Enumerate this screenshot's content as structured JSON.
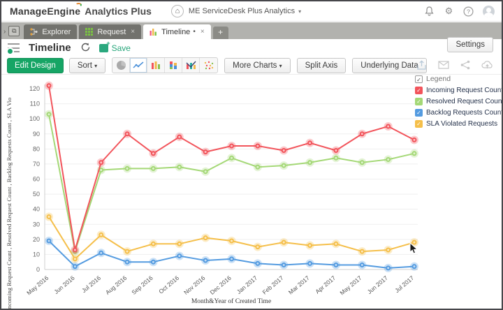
{
  "ui": {
    "caret": "▾",
    "close": "×",
    "add_tab": "+",
    "dirty": "•",
    "chevron": "›",
    "restore_glyph": "⧉",
    "home_glyph": "⌂",
    "help_glyph": "?",
    "gear_glyph": "⚙",
    "plus": "+"
  },
  "header": {
    "brand": "ManageEngine",
    "product": "Analytics Plus",
    "workspace": "ME ServiceDesk Plus Analytics"
  },
  "tabs": {
    "explorer": {
      "label": "Explorer"
    },
    "request": {
      "label": "Request"
    },
    "timeline": {
      "label": "Timeline"
    }
  },
  "toolbar": {
    "title": "Timeline",
    "save_label": "Save",
    "settings_label": "Settings"
  },
  "design_bar": {
    "edit_design": "Edit Design",
    "sort": "Sort",
    "more_charts": "More Charts",
    "split_axis": "Split Axis",
    "underlying_data": "Underlying Data"
  },
  "legend": {
    "title": "Legend",
    "items": [
      {
        "label": "Incoming Request Count",
        "color": "#f2545b"
      },
      {
        "label": "Resolved Request Count",
        "color": "#a4d876"
      },
      {
        "label": "Backlog Requests Count",
        "color": "#549be0"
      },
      {
        "label": "SLA Violated Requests",
        "color": "#f5bf4a"
      }
    ]
  },
  "chart_data": {
    "type": "line",
    "x": [
      "May 2016",
      "Jun 2016",
      "Jul 2016",
      "Aug 2016",
      "Sep 2016",
      "Oct 2016",
      "Nov 2016",
      "Dec 2016",
      "Jan 2017",
      "Feb 2017",
      "Mar 2017",
      "Apr 2017",
      "May 2017",
      "Jun 2017",
      "Jul 2017"
    ],
    "series": [
      {
        "name": "Incoming Request Count",
        "color": "#f2545b",
        "values": [
          122,
          13,
          71,
          90,
          77,
          88,
          78,
          82,
          82,
          79,
          84,
          79,
          90,
          95,
          86
        ]
      },
      {
        "name": "Resolved Request Count",
        "color": "#a4d876",
        "values": [
          103,
          12,
          66,
          67,
          67,
          68,
          65,
          74,
          68,
          69,
          71,
          74,
          71,
          73,
          77
        ]
      },
      {
        "name": "Backlog Requests Count",
        "color": "#549be0",
        "values": [
          19,
          2,
          11,
          5,
          5,
          9,
          6,
          7,
          4,
          3,
          4,
          3,
          3,
          1,
          2
        ]
      },
      {
        "name": "SLA Violated Requests",
        "color": "#f5bf4a",
        "values": [
          35,
          7,
          23,
          12,
          17,
          17,
          21,
          19,
          15,
          18,
          16,
          17,
          12,
          13,
          18
        ]
      }
    ],
    "title": "",
    "xlabel": "Month&Year of Created Time",
    "ylabel": "Incoming Request Count , Resolved Request Count , Backlog Requests Count , SLA Vio",
    "ylim": [
      0,
      120
    ],
    "ytick_step": 10,
    "grid": true,
    "legend_position": "top-right"
  }
}
